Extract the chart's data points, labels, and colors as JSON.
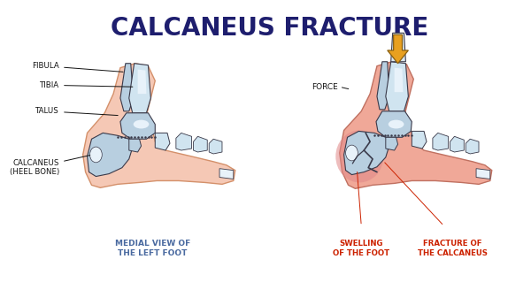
{
  "title": "CALCANEUS FRACTURE",
  "title_color": "#1e1e6e",
  "title_fontsize": 20,
  "title_fontweight": "bold",
  "bg_color": "#ffffff",
  "left_caption": "MEDIAL VIEW OF\nTHE LEFT FOOT",
  "left_caption_color": "#4a6aa0",
  "right_label_swelling": "SWELLING\nOF THE FOOT",
  "right_label_fracture": "FRACTURE OF\nTHE CALCANEUS",
  "right_labels_color": "#cc2200",
  "force_label": "FORCE",
  "force_label_color": "#333333",
  "bone_fill": "#b8cfe0",
  "bone_fill2": "#d0e4f0",
  "bone_highlight": "#e8f2fa",
  "bone_outline": "#3a3a4a",
  "skin_left": "#f5c8b5",
  "skin_left_edge": "#d4906a",
  "skin_right": "#f0a898",
  "skin_right_edge": "#c07060",
  "skin_right_dark": "#e08080",
  "arrow_fill": "#e8a020",
  "arrow_edge": "#8a6010",
  "ann_color": "#111111",
  "frac_color": "#cc3322"
}
